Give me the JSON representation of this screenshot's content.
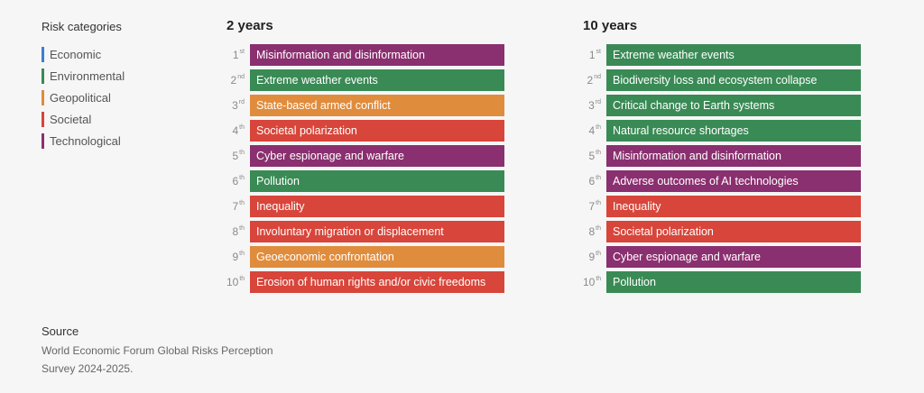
{
  "legend": {
    "title": "Risk categories",
    "items": [
      {
        "label": "Economic",
        "color": "#3a7fd0"
      },
      {
        "label": "Environmental",
        "color": "#3a8a55"
      },
      {
        "label": "Geopolitical",
        "color": "#e08c3d"
      },
      {
        "label": "Societal",
        "color": "#d8453a"
      },
      {
        "label": "Technological",
        "color": "#8a2f6f"
      }
    ]
  },
  "categoryColors": {
    "Economic": "#3a7fd0",
    "Environmental": "#3a8a55",
    "Geopolitical": "#e08c3d",
    "Societal": "#d8453a",
    "Technological": "#8a2f6f"
  },
  "chart_data": [
    {
      "type": "table",
      "title": "2 years",
      "rows": [
        {
          "rank": "1",
          "suffix": "st",
          "label": "Misinformation and disinformation",
          "category": "Technological"
        },
        {
          "rank": "2",
          "suffix": "nd",
          "label": "Extreme weather events",
          "category": "Environmental"
        },
        {
          "rank": "3",
          "suffix": "rd",
          "label": "State-based armed conflict",
          "category": "Geopolitical"
        },
        {
          "rank": "4",
          "suffix": "th",
          "label": "Societal polarization",
          "category": "Societal"
        },
        {
          "rank": "5",
          "suffix": "th",
          "label": "Cyber espionage and warfare",
          "category": "Technological"
        },
        {
          "rank": "6",
          "suffix": "th",
          "label": "Pollution",
          "category": "Environmental"
        },
        {
          "rank": "7",
          "suffix": "th",
          "label": "Inequality",
          "category": "Societal"
        },
        {
          "rank": "8",
          "suffix": "th",
          "label": "Involuntary migration or displacement",
          "category": "Societal"
        },
        {
          "rank": "9",
          "suffix": "th",
          "label": "Geoeconomic confrontation",
          "category": "Geopolitical"
        },
        {
          "rank": "10",
          "suffix": "th",
          "label": "Erosion of human rights and/or civic freedoms",
          "category": "Societal"
        }
      ]
    },
    {
      "type": "table",
      "title": "10 years",
      "rows": [
        {
          "rank": "1",
          "suffix": "st",
          "label": "Extreme weather events",
          "category": "Environmental"
        },
        {
          "rank": "2",
          "suffix": "nd",
          "label": "Biodiversity loss and ecosystem collapse",
          "category": "Environmental"
        },
        {
          "rank": "3",
          "suffix": "rd",
          "label": "Critical change to Earth systems",
          "category": "Environmental"
        },
        {
          "rank": "4",
          "suffix": "th",
          "label": "Natural resource shortages",
          "category": "Environmental"
        },
        {
          "rank": "5",
          "suffix": "th",
          "label": "Misinformation and disinformation",
          "category": "Technological"
        },
        {
          "rank": "6",
          "suffix": "th",
          "label": "Adverse outcomes of AI technologies",
          "category": "Technological"
        },
        {
          "rank": "7",
          "suffix": "th",
          "label": "Inequality",
          "category": "Societal"
        },
        {
          "rank": "8",
          "suffix": "th",
          "label": "Societal polarization",
          "category": "Societal"
        },
        {
          "rank": "9",
          "suffix": "th",
          "label": "Cyber espionage and warfare",
          "category": "Technological"
        },
        {
          "rank": "10",
          "suffix": "th",
          "label": "Pollution",
          "category": "Environmental"
        }
      ]
    }
  ],
  "source": {
    "title": "Source",
    "text": "World Economic Forum Global Risks Perception Survey 2024-2025."
  }
}
